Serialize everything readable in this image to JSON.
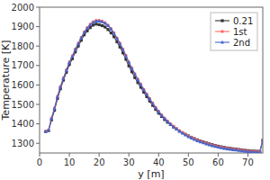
{
  "chart_data": {
    "type": "line",
    "xlabel": "y [m]",
    "ylabel": "Temperature [K]",
    "xlim": [
      0,
      75
    ],
    "ylim": [
      1250,
      2000
    ],
    "xticks": [
      0,
      10,
      20,
      30,
      40,
      50,
      60,
      70
    ],
    "yticks": [
      1300,
      1400,
      1500,
      1600,
      1700,
      1800,
      1900,
      2000
    ],
    "grid": false,
    "legend": "upper right",
    "x": [
      2,
      3,
      4,
      5,
      6,
      7,
      8,
      9,
      10,
      11,
      12,
      13,
      14,
      15,
      16,
      17,
      18,
      19,
      20,
      21,
      22,
      23,
      24,
      25,
      26,
      27,
      28,
      29,
      30,
      31,
      32,
      33,
      34,
      35,
      36,
      37,
      38,
      39,
      40,
      41,
      42,
      43,
      44,
      45,
      46,
      47,
      48,
      49,
      50,
      51,
      52,
      53,
      54,
      55,
      56,
      57,
      58,
      59,
      60,
      61,
      62,
      63,
      64,
      65,
      66,
      67,
      68,
      69,
      70,
      71,
      72,
      73,
      74,
      75
    ],
    "series": [
      {
        "name": "0.21",
        "color": "#333333",
        "marker": "square",
        "values": [
          1360,
          1365,
          1420,
          1470,
          1530,
          1580,
          1625,
          1665,
          1705,
          1735,
          1770,
          1800,
          1830,
          1858,
          1878,
          1895,
          1908,
          1913,
          1910,
          1905,
          1898,
          1885,
          1868,
          1848,
          1822,
          1795,
          1765,
          1732,
          1698,
          1668,
          1638,
          1612,
          1588,
          1563,
          1540,
          1517,
          1495,
          1474,
          1455,
          1438,
          1422,
          1408,
          1396,
          1384,
          1373,
          1363,
          1354,
          1346,
          1338,
          1331,
          1324,
          1318,
          1312,
          1307,
          1302,
          1297,
          1293,
          1289,
          1285,
          1282,
          1279,
          1276,
          1274,
          1272,
          1270,
          1268,
          1266,
          1264,
          1262,
          1261,
          1260,
          1259,
          1258,
          1316
        ]
      },
      {
        "name": "1st",
        "color": "#ff6666",
        "marker": "circle",
        "values": [
          1360,
          1368,
          1430,
          1482,
          1542,
          1592,
          1637,
          1678,
          1718,
          1750,
          1785,
          1815,
          1845,
          1873,
          1895,
          1912,
          1925,
          1932,
          1932,
          1928,
          1920,
          1908,
          1890,
          1868,
          1842,
          1815,
          1785,
          1752,
          1718,
          1688,
          1658,
          1630,
          1604,
          1578,
          1554,
          1530,
          1507,
          1485,
          1465,
          1447,
          1430,
          1415,
          1401,
          1388,
          1376,
          1365,
          1355,
          1346,
          1337,
          1330,
          1323,
          1316,
          1310,
          1305,
          1300,
          1295,
          1291,
          1287,
          1283,
          1280,
          1277,
          1274,
          1272,
          1270,
          1268,
          1266,
          1264,
          1262,
          1260,
          1259,
          1258,
          1257,
          1256,
          1316
        ]
      },
      {
        "name": "2nd",
        "color": "#4466cc",
        "marker": "triangle",
        "values": [
          1360,
          1367,
          1427,
          1479,
          1539,
          1589,
          1634,
          1675,
          1715,
          1747,
          1782,
          1812,
          1842,
          1870,
          1892,
          1909,
          1922,
          1929,
          1929,
          1925,
          1917,
          1905,
          1887,
          1865,
          1839,
          1812,
          1782,
          1749,
          1715,
          1685,
          1655,
          1627,
          1601,
          1575,
          1551,
          1527,
          1504,
          1482,
          1462,
          1444,
          1427,
          1412,
          1398,
          1385,
          1373,
          1362,
          1352,
          1343,
          1334,
          1327,
          1320,
          1313,
          1307,
          1302,
          1297,
          1292,
          1288,
          1284,
          1280,
          1277,
          1274,
          1271,
          1269,
          1267,
          1265,
          1263,
          1261,
          1259,
          1257,
          1256,
          1255,
          1254,
          1253,
          1314
        ]
      }
    ]
  }
}
